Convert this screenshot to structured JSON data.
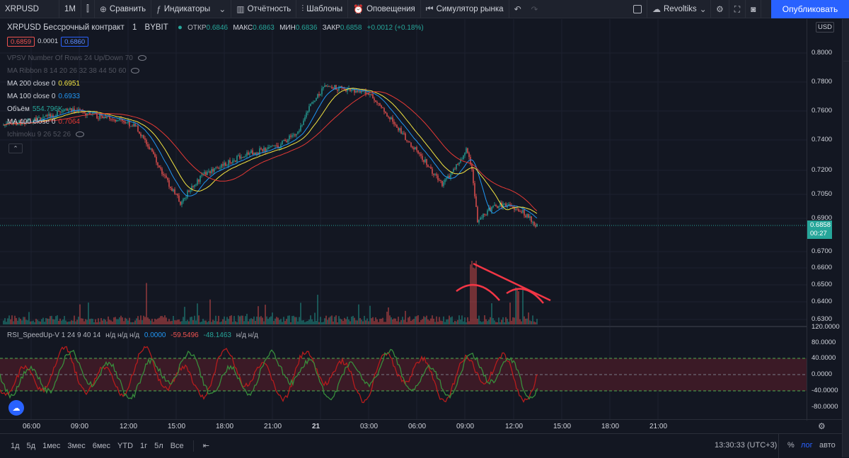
{
  "toolbar": {
    "symbol": "XRPUSD",
    "interval": "1М",
    "compare": "Сравнить",
    "indicators": "Индикаторы",
    "financials": "Отчётность",
    "templates": "Шаблоны",
    "alerts": "Оповещения",
    "replay": "Симулятор рынка",
    "layout_name": "Revoltiks",
    "publish": "Опубликовать"
  },
  "header": {
    "title": "XRPUSD Бессрочный контракт",
    "interval": "1",
    "exchange": "BYBIT",
    "open_label": "ОТКР",
    "open": "0.6846",
    "high_label": "МАКС",
    "high": "0.6863",
    "low_label": "МИН",
    "low": "0.6836",
    "close_label": "ЗАКР",
    "close": "0.6858",
    "change": "+0.0012 (+0.18%)",
    "bid": "0.6859",
    "spread": "0.0001",
    "ask": "0.6860",
    "currency": "USD"
  },
  "indicators": {
    "vpsv": "VPSV Number Of Rows 24 Up/Down 70",
    "ribbon": "MA Ribbon 8 14 20 26 32 38 44 50 60",
    "ma200_label": "MA 200 close 0",
    "ma200": "0.6951",
    "ma100_label": "MA 100 close 0",
    "ma100": "0.6933",
    "volume_label": "Объём",
    "volume": "554.796K",
    "ma400_label": "MA 400 close 0",
    "ma400": "0.7064",
    "ichimoku": "Ichimoku 9 26 52 26",
    "rsi_label": "RSI_SpeedUp-V 1 24 9 40 14",
    "rsi_na1": "н/д н/д н/д",
    "rsi_v1": "0.0000",
    "rsi_v2": "-59.5496",
    "rsi_v3": "-48.1463",
    "rsi_na2": "н/д н/д"
  },
  "price_axis": {
    "ticks": [
      "0.8000",
      "0.7800",
      "0.7600",
      "0.7400",
      "0.7200",
      "0.7050",
      "0.6900",
      "0.6700",
      "0.6600",
      "0.6500",
      "0.6400",
      "0.6300"
    ],
    "last_price": "0.6858",
    "countdown": "00:27"
  },
  "rsi_axis": {
    "ticks": [
      "120.0000",
      "80.0000",
      "40.0000",
      "0.0000",
      "-40.0000",
      "-80.0000"
    ]
  },
  "time_axis": {
    "ticks": [
      "06:00",
      "09:00",
      "12:00",
      "15:00",
      "18:00",
      "21:00",
      "21",
      "03:00",
      "06:00",
      "09:00",
      "12:00",
      "15:00",
      "18:00",
      "21:00"
    ]
  },
  "bottombar": {
    "ranges": [
      "1д",
      "5д",
      "1мес",
      "3мес",
      "6мес",
      "YTD",
      "1г",
      "5л",
      "Все"
    ],
    "clock": "13:30:33 (UTC+3)",
    "percent": "%",
    "log": "лог",
    "auto": "авто"
  },
  "colors": {
    "bg": "#131722",
    "up": "#26a69a",
    "down": "#ef5350",
    "ma200": "#f5e642",
    "ma100": "#2196f3",
    "ma400": "#e53935",
    "accent": "#2962ff"
  }
}
